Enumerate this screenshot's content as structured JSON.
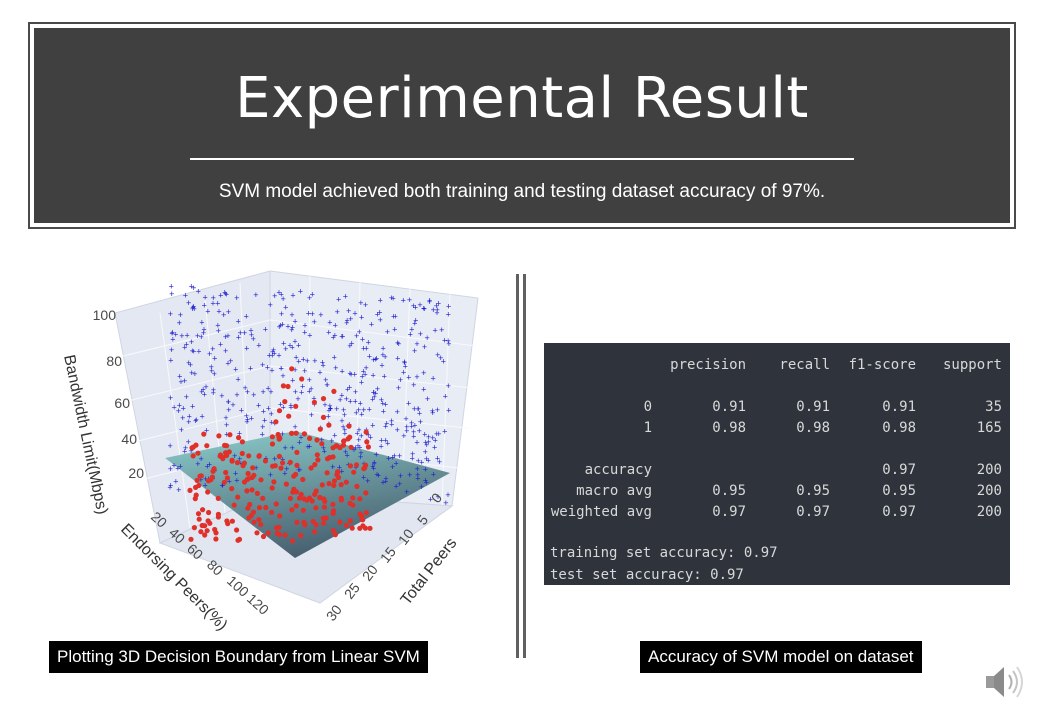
{
  "slide": {
    "title": "Experimental Result",
    "subtitle": "SVM model achieved both training and testing dataset accuracy of 97%."
  },
  "plot": {
    "caption": "Plotting 3D Decision Boundary from Linear SVM",
    "z_axis_title": "Bandwidth Limit(Mbps)",
    "y_axis_title": "Endorsing Peers(%)",
    "x_axis_title": "Total Peers",
    "z_ticks": [
      "100",
      "80",
      "60",
      "40",
      "20"
    ],
    "y_ticks": [
      "20",
      "40",
      "60",
      "80",
      "100",
      "120"
    ],
    "x_ticks": [
      "0",
      "5",
      "10",
      "15",
      "20",
      "25",
      "30"
    ],
    "colors": {
      "class_1": "#1f1fcf",
      "class_0": "#e0302a",
      "plane_top": "#7ec7c4",
      "plane_bottom": "#3f5a6a",
      "pane": "#e4e8f2"
    }
  },
  "report": {
    "caption": "Accuracy of SVM model on dataset",
    "header": [
      "precision",
      "recall",
      "f1-score",
      "support"
    ],
    "rows": [
      {
        "label": "0",
        "precision": "0.91",
        "recall": "0.91",
        "f1": "0.91",
        "support": "35"
      },
      {
        "label": "1",
        "precision": "0.98",
        "recall": "0.98",
        "f1": "0.98",
        "support": "165"
      },
      {
        "label": "accuracy",
        "precision": "",
        "recall": "",
        "f1": "0.97",
        "support": "200"
      },
      {
        "label": "macro avg",
        "precision": "0.95",
        "recall": "0.95",
        "f1": "0.95",
        "support": "200"
      },
      {
        "label": "weighted avg",
        "precision": "0.97",
        "recall": "0.97",
        "f1": "0.97",
        "support": "200"
      }
    ],
    "training_line": "training set accuracy: 0.97",
    "test_line": "test set accuracy: 0.97"
  },
  "audio": {
    "icon": "speaker-icon"
  }
}
